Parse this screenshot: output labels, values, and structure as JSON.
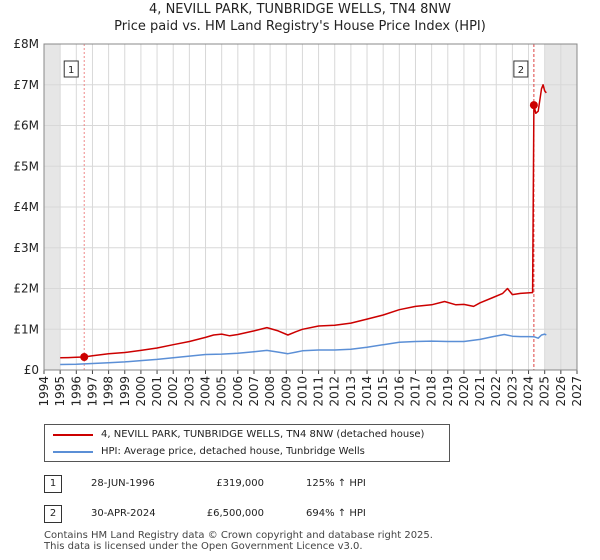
{
  "title_line1": "4, NEVILL PARK, TUNBRIDGE WELLS, TN4 8NW",
  "title_line2": "Price paid vs. HM Land Registry's House Price Index (HPI)",
  "chart_data": {
    "type": "line",
    "title": "4, NEVILL PARK, TUNBRIDGE WELLS, TN4 8NW",
    "subtitle": "Price paid vs. HM Land Registry's House Price Index (HPI)",
    "xlim": [
      1994,
      2027
    ],
    "ylim": [
      0,
      8000000
    ],
    "x_ticks": [
      "1994",
      "1995",
      "1996",
      "1997",
      "1998",
      "1999",
      "2000",
      "2001",
      "2002",
      "2003",
      "2004",
      "2005",
      "2006",
      "2007",
      "2008",
      "2009",
      "2010",
      "2011",
      "2012",
      "2013",
      "2014",
      "2015",
      "2016",
      "2017",
      "2018",
      "2019",
      "2020",
      "2021",
      "2022",
      "2023",
      "2024",
      "2025",
      "2026",
      "2027"
    ],
    "y_ticks": [
      {
        "value": 0,
        "label": "£0"
      },
      {
        "value": 1000000,
        "label": "£1M"
      },
      {
        "value": 2000000,
        "label": "£2M"
      },
      {
        "value": 3000000,
        "label": "£3M"
      },
      {
        "value": 4000000,
        "label": "£4M"
      },
      {
        "value": 5000000,
        "label": "£5M"
      },
      {
        "value": 6000000,
        "label": "£6M"
      },
      {
        "value": 7000000,
        "label": "£7M"
      },
      {
        "value": 8000000,
        "label": "£8M"
      }
    ],
    "grid": true,
    "shaded_ranges": [
      [
        1994,
        1995
      ],
      [
        2025,
        2027
      ]
    ],
    "series": [
      {
        "name": "4, NEVILL PARK, TUNBRIDGE WELLS, TN4 8NW (detached house)",
        "color": "#cc0000",
        "points": [
          [
            1995,
            300000
          ],
          [
            1995.5,
            305000
          ],
          [
            1996,
            312000
          ],
          [
            1996.49,
            319000
          ],
          [
            1997,
            350000
          ],
          [
            1998,
            400000
          ],
          [
            1999,
            430000
          ],
          [
            2000,
            480000
          ],
          [
            2001,
            540000
          ],
          [
            2002,
            620000
          ],
          [
            2003,
            700000
          ],
          [
            2004,
            800000
          ],
          [
            2004.5,
            860000
          ],
          [
            2005,
            880000
          ],
          [
            2005.5,
            840000
          ],
          [
            2006,
            870000
          ],
          [
            2007,
            960000
          ],
          [
            2007.8,
            1040000
          ],
          [
            2008.5,
            960000
          ],
          [
            2009.1,
            860000
          ],
          [
            2009.6,
            940000
          ],
          [
            2010,
            1000000
          ],
          [
            2011,
            1080000
          ],
          [
            2012,
            1100000
          ],
          [
            2013,
            1150000
          ],
          [
            2014,
            1250000
          ],
          [
            2015,
            1350000
          ],
          [
            2016,
            1480000
          ],
          [
            2017,
            1560000
          ],
          [
            2018,
            1600000
          ],
          [
            2018.8,
            1680000
          ],
          [
            2019.5,
            1600000
          ],
          [
            2020,
            1610000
          ],
          [
            2020.6,
            1560000
          ],
          [
            2021,
            1650000
          ],
          [
            2021.8,
            1780000
          ],
          [
            2022.4,
            1880000
          ],
          [
            2022.7,
            2000000
          ],
          [
            2023,
            1850000
          ],
          [
            2023.5,
            1880000
          ],
          [
            2024.2,
            1900000
          ],
          [
            2024.25,
            1900000
          ],
          [
            2024.33,
            6500000
          ],
          [
            2024.45,
            6300000
          ],
          [
            2024.6,
            6350000
          ],
          [
            2024.8,
            6900000
          ],
          [
            2024.9,
            7000000
          ],
          [
            2025,
            6850000
          ],
          [
            2025.1,
            6800000
          ]
        ]
      },
      {
        "name": "HPI: Average price, detached house, Tunbridge Wells",
        "color": "#5b8fd6",
        "points": [
          [
            1995,
            135000
          ],
          [
            1996,
            142000
          ],
          [
            1997,
            160000
          ],
          [
            1998,
            180000
          ],
          [
            1999,
            200000
          ],
          [
            2000,
            230000
          ],
          [
            2001,
            260000
          ],
          [
            2002,
            300000
          ],
          [
            2003,
            340000
          ],
          [
            2004,
            380000
          ],
          [
            2005,
            390000
          ],
          [
            2006,
            410000
          ],
          [
            2007,
            450000
          ],
          [
            2007.8,
            480000
          ],
          [
            2008.5,
            440000
          ],
          [
            2009.1,
            400000
          ],
          [
            2009.6,
            440000
          ],
          [
            2010,
            470000
          ],
          [
            2011,
            490000
          ],
          [
            2012,
            490000
          ],
          [
            2013,
            510000
          ],
          [
            2014,
            560000
          ],
          [
            2015,
            620000
          ],
          [
            2016,
            680000
          ],
          [
            2017,
            700000
          ],
          [
            2018,
            710000
          ],
          [
            2019,
            700000
          ],
          [
            2020,
            700000
          ],
          [
            2021,
            750000
          ],
          [
            2021.8,
            820000
          ],
          [
            2022.5,
            870000
          ],
          [
            2023,
            830000
          ],
          [
            2023.5,
            820000
          ],
          [
            2024,
            820000
          ],
          [
            2024.33,
            818000
          ],
          [
            2024.6,
            780000
          ],
          [
            2024.8,
            860000
          ],
          [
            2025,
            880000
          ],
          [
            2025.1,
            860000
          ]
        ]
      }
    ],
    "markers": [
      {
        "label": "1",
        "x": 1996.49,
        "y": 319000
      },
      {
        "label": "2",
        "x": 2024.33,
        "y": 6500000
      }
    ]
  },
  "legend": {
    "items": [
      {
        "label": "4, NEVILL PARK, TUNBRIDGE WELLS, TN4 8NW (detached house)",
        "color": "#cc0000"
      },
      {
        "label": "HPI: Average price, detached house, Tunbridge Wells",
        "color": "#5b8fd6"
      }
    ]
  },
  "annotations": [
    {
      "num": "1",
      "date": "28-JUN-1996",
      "price": "£319,000",
      "hpi": "125% ↑ HPI"
    },
    {
      "num": "2",
      "date": "30-APR-2024",
      "price": "£6,500,000",
      "hpi": "694% ↑ HPI"
    }
  ],
  "footer": {
    "line1": "Contains HM Land Registry data © Crown copyright and database right 2025.",
    "line2": "This data is licensed under the Open Government Licence v3.0."
  }
}
